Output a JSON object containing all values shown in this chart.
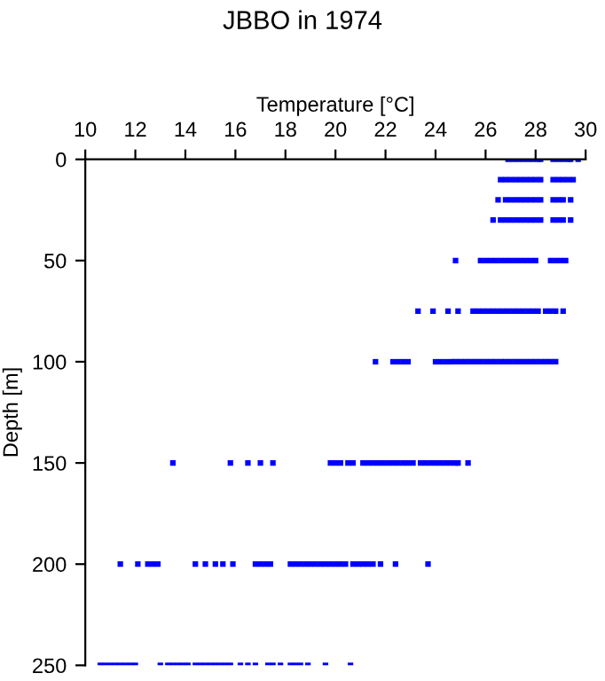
{
  "chart_data": {
    "type": "scatter",
    "title": "JBBO in 1974",
    "xlabel": "Temperature [°C]",
    "ylabel": "Depth [m]",
    "xlim": [
      10,
      30
    ],
    "xticks": [
      10,
      12,
      14,
      16,
      18,
      20,
      22,
      24,
      26,
      28,
      30
    ],
    "ylim": [
      250,
      0
    ],
    "yticks": [
      0,
      50,
      100,
      150,
      200,
      250
    ],
    "grid": false,
    "legend": false,
    "marker": "square",
    "series": [
      {
        "color": "#0000ff",
        "x": [
          26.9,
          27.1,
          27.3,
          27.5,
          27.7,
          27.9,
          28.1,
          28.2,
          28.7,
          28.9,
          29.1,
          29.3,
          29.4,
          29.7
        ],
        "values": [
          0,
          0,
          0,
          0,
          0,
          0,
          0,
          0,
          0,
          0,
          0,
          0,
          0,
          0
        ]
      },
      {
        "color": "#0000ff",
        "x": [
          26.6,
          26.8,
          27.0,
          27.2,
          27.4,
          27.6,
          27.8,
          28.0,
          28.2,
          28.7,
          28.9,
          29.1,
          29.3,
          29.5
        ],
        "values": [
          10,
          10,
          10,
          10,
          10,
          10,
          10,
          10,
          10,
          10,
          10,
          10,
          10,
          10
        ]
      },
      {
        "color": "#0000ff",
        "x": [
          26.5,
          26.8,
          27.0,
          27.2,
          27.4,
          27.6,
          27.8,
          28.0,
          28.2,
          28.7,
          28.9,
          29.1,
          29.4
        ],
        "values": [
          20,
          20,
          20,
          20,
          20,
          20,
          20,
          20,
          20,
          20,
          20,
          20,
          20
        ]
      },
      {
        "color": "#0000ff",
        "x": [
          26.3,
          26.6,
          26.8,
          27.0,
          27.2,
          27.4,
          27.6,
          27.8,
          28.0,
          28.2,
          28.7,
          28.9,
          29.1,
          29.4
        ],
        "values": [
          30,
          30,
          30,
          30,
          30,
          30,
          30,
          30,
          30,
          30,
          30,
          30,
          30,
          30
        ]
      },
      {
        "color": "#0000ff",
        "x": [
          24.8,
          25.8,
          26.0,
          26.2,
          26.4,
          26.6,
          26.8,
          27.0,
          27.2,
          27.4,
          27.6,
          27.8,
          28.0,
          28.6,
          28.8,
          29.0,
          29.2
        ],
        "values": [
          50,
          50,
          50,
          50,
          50,
          50,
          50,
          50,
          50,
          50,
          50,
          50,
          50,
          50,
          50,
          50,
          50
        ]
      },
      {
        "color": "#0000ff",
        "x": [
          23.3,
          23.9,
          24.5,
          24.9,
          25.5,
          25.7,
          25.9,
          26.1,
          26.3,
          26.5,
          26.7,
          26.9,
          27.1,
          27.3,
          27.5,
          27.7,
          27.9,
          28.1,
          28.4,
          28.6,
          28.8,
          29.1
        ],
        "values": [
          75,
          75,
          75,
          75,
          75,
          75,
          75,
          75,
          75,
          75,
          75,
          75,
          75,
          75,
          75,
          75,
          75,
          75,
          75,
          75,
          75,
          75
        ]
      },
      {
        "color": "#0000ff",
        "x": [
          21.6,
          22.3,
          22.5,
          22.7,
          22.9,
          24.0,
          24.2,
          24.4,
          24.6,
          24.8,
          25.0,
          25.2,
          25.4,
          25.6,
          25.8,
          26.0,
          26.2,
          26.4,
          26.6,
          26.8,
          27.0,
          27.2,
          27.4,
          27.6,
          27.8,
          28.0,
          28.2,
          28.4,
          28.6,
          28.8
        ],
        "values": [
          100,
          100,
          100,
          100,
          100,
          100,
          100,
          100,
          100,
          100,
          100,
          100,
          100,
          100,
          100,
          100,
          100,
          100,
          100,
          100,
          100,
          100,
          100,
          100,
          100,
          100,
          100,
          100,
          100,
          100
        ]
      },
      {
        "color": "#0000ff",
        "x": [
          13.5,
          15.8,
          16.5,
          17.0,
          17.5,
          19.8,
          20.0,
          20.2,
          20.5,
          20.7,
          21.1,
          21.3,
          21.5,
          21.7,
          21.9,
          22.1,
          22.3,
          22.5,
          22.7,
          22.9,
          23.1,
          23.4,
          23.6,
          23.8,
          24.0,
          24.2,
          24.4,
          24.6,
          24.8,
          24.9,
          25.3
        ],
        "values": [
          150,
          150,
          150,
          150,
          150,
          150,
          150,
          150,
          150,
          150,
          150,
          150,
          150,
          150,
          150,
          150,
          150,
          150,
          150,
          150,
          150,
          150,
          150,
          150,
          150,
          150,
          150,
          150,
          150,
          150,
          150
        ]
      },
      {
        "color": "#0000ff",
        "x": [
          11.4,
          12.1,
          12.5,
          12.7,
          12.9,
          14.4,
          14.8,
          15.2,
          15.5,
          15.9,
          16.8,
          17.0,
          17.2,
          17.4,
          18.2,
          18.4,
          18.6,
          18.8,
          19.0,
          19.2,
          19.4,
          19.6,
          19.8,
          20.0,
          20.2,
          20.4,
          20.7,
          20.9,
          21.1,
          21.3,
          21.5,
          21.8,
          22.4,
          23.7
        ],
        "values": [
          200,
          200,
          200,
          200,
          200,
          200,
          200,
          200,
          200,
          200,
          200,
          200,
          200,
          200,
          200,
          200,
          200,
          200,
          200,
          200,
          200,
          200,
          200,
          200,
          200,
          200,
          200,
          200,
          200,
          200,
          200,
          200,
          200,
          200
        ]
      },
      {
        "color": "#0000ff",
        "x": [
          10.6,
          10.8,
          11.0,
          11.2,
          11.4,
          11.6,
          11.8,
          12.0,
          13.0,
          13.3,
          13.5,
          13.7,
          13.9,
          14.1,
          14.4,
          14.6,
          14.8,
          15.0,
          15.2,
          15.4,
          15.6,
          15.8,
          16.2,
          16.5,
          16.8,
          17.3,
          17.5,
          17.8,
          18.2,
          18.4,
          18.6,
          18.9,
          19.6,
          20.6
        ],
        "values": [
          250,
          250,
          250,
          250,
          250,
          250,
          250,
          250,
          250,
          250,
          250,
          250,
          250,
          250,
          250,
          250,
          250,
          250,
          250,
          250,
          250,
          250,
          250,
          250,
          250,
          250,
          250,
          250,
          250,
          250,
          250,
          250,
          250,
          250
        ]
      }
    ]
  }
}
